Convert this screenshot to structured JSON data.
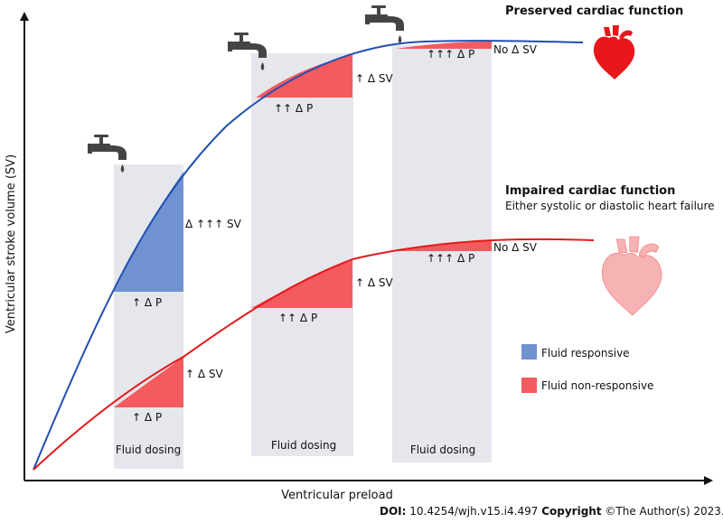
{
  "axes": {
    "y_label": "Ventricular stroke volume (SV)",
    "x_label": "Ventricular preload"
  },
  "curves": {
    "preserved": {
      "title": "Preserved cardiac function",
      "color": "#1f4fb3"
    },
    "impaired": {
      "title": "Impaired cardiac function",
      "subtitle": "Either systolic or diastolic heart failure",
      "color": "#e31b1b"
    }
  },
  "annotations": {
    "p1_pres_dp": "↑ Δ P",
    "p1_pres_dsv": "Δ ↑↑↑ SV",
    "p1_imp_dp": "↑ Δ P",
    "p1_imp_dsv": "↑ Δ SV",
    "p2_pres_dp": "↑↑ Δ P",
    "p2_pres_dsv": "↑ Δ SV",
    "p2_imp_dp": "↑↑ Δ P",
    "p2_imp_dsv": "↑ Δ SV",
    "p3_pres_dp": "↑↑↑ Δ P",
    "p3_pres_dsv": "No Δ SV",
    "p3_imp_dp": "↑↑↑ Δ P",
    "p3_imp_dsv": "No Δ SV"
  },
  "panels": {
    "label": "Fluid dosing"
  },
  "legend": {
    "responsive": {
      "label": "Fluid responsive",
      "color": "#7092d0"
    },
    "nonresponsive": {
      "label": "Fluid non-responsive",
      "color": "#f35b5f"
    }
  },
  "icons": {
    "faucet": "faucet-icon",
    "heart_preserved": "heart-icon",
    "heart_impaired": "heart-icon"
  },
  "footer": {
    "doi_label": "DOI:",
    "doi_value": "10.4254/wjh.v15.i4.497",
    "copyright_label": "Copyright",
    "copyright_text": "©The Author(s) 2023."
  }
}
